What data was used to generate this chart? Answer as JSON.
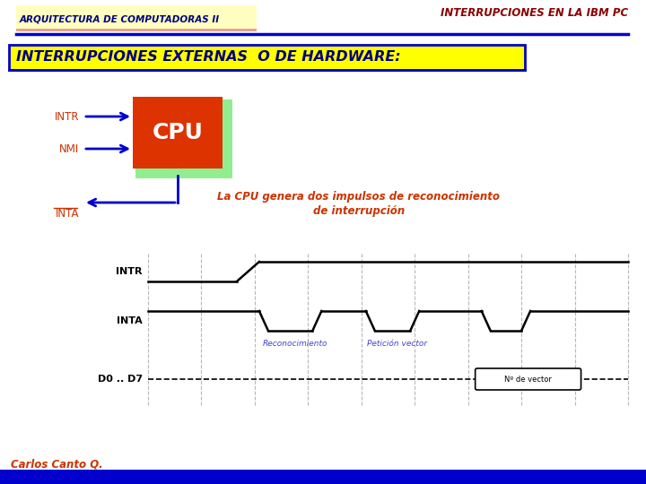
{
  "bg_color": "#f5f5ee",
  "title_left": "ARQUITECTURA DE COMPUTADORAS II",
  "title_right": "INTERRUPCIONES EN LA IBM PC",
  "title_left_bg": "#ffffc0",
  "title_left_underline": "#e8a090",
  "title_left_color": "#000080",
  "title_right_color": "#8b0000",
  "header_line_color": "#0000cc",
  "section_title": "INTERRUPCIONES EXTERNAS  O DE HARDWARE:",
  "section_title_bg": "#ffff00",
  "section_title_color": "#000080",
  "section_title_border": "#0000cc",
  "cpu_box_color": "#dd3300",
  "cpu_text": "CPU",
  "cpu_text_color": "#ffffff",
  "cpu_bg_green": "#90ee90",
  "intr_label": "INTR",
  "nmi_label": "NMI",
  "inta_label": "INTA",
  "arrow_color": "#0000cc",
  "desc_text_line1": "La CPU genera dos impulsos de reconocimiento",
  "desc_text_line2": "de interrupción",
  "desc_color": "#cc3300",
  "waveform_intr": "INTR",
  "waveform_inta": "INTA",
  "waveform_d0d7": "D0 .. D7",
  "reconocimiento_label": "Reconocimiento",
  "peticion_label": "Petición vector",
  "nr_vector_label": "Nº de vector",
  "reconocimiento_color": "#4444cc",
  "peticion_color": "#4444cc",
  "nr_vector_color": "#000000",
  "footer_text": "Carlos Canto Q.",
  "footer_color": "#cc3300",
  "footer_bg": "#0000cc",
  "waveform_line_color": "#000000",
  "grid_line_color": "#888888",
  "white": "#ffffff"
}
